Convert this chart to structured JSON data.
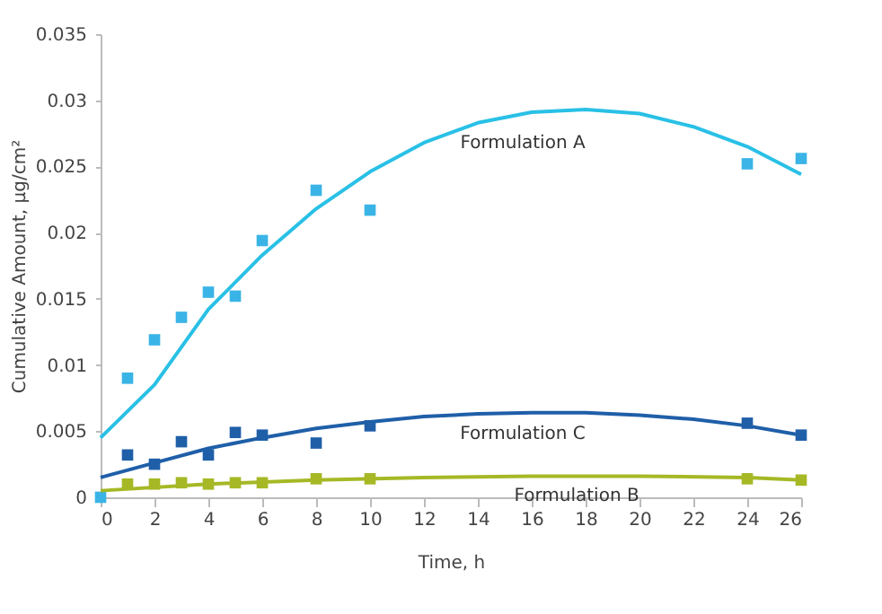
{
  "chart_data": {
    "type": "scatter",
    "xlabel": "Time, h",
    "ylabel": "Cumulative Amount, µg/cm²",
    "xlim": [
      0,
      26
    ],
    "xticks": [
      0,
      2,
      4,
      6,
      8,
      10,
      12,
      14,
      16,
      18,
      20,
      22,
      24,
      26
    ],
    "ylim": [
      0,
      0.035
    ],
    "yticks": [
      0,
      0.005,
      0.01,
      0.015,
      0.02,
      0.025,
      0.03,
      0.035
    ],
    "grid": false,
    "marker": "square",
    "series": [
      {
        "color": "#3ab4e6",
        "x": [
          0,
          1,
          2,
          3,
          4,
          5,
          6,
          8,
          10,
          24,
          26
        ],
        "values": [
          0,
          0.009,
          0.0119,
          0.0136,
          0.0155,
          0.0152,
          0.0194,
          0.0232,
          0.0217,
          0.0252,
          0.0256
        ]
      },
      {
        "color": "#1f5fa8",
        "x": [
          1,
          2,
          3,
          4,
          5,
          6,
          8,
          10,
          24,
          26
        ],
        "values": [
          0.0032,
          0.0025,
          0.0042,
          0.0032,
          0.0049,
          0.0047,
          0.0041,
          0.0054,
          0.0056,
          0.0047
        ]
      },
      {
        "color": "#a6b825",
        "x": [
          1,
          2,
          3,
          4,
          5,
          6,
          8,
          10,
          24,
          26
        ],
        "values": [
          0.001,
          0.001,
          0.0011,
          0.001,
          0.0011,
          0.0011,
          0.0014,
          0.0014,
          0.0014,
          0.0013
        ]
      },
      {
        "type": "line",
        "marker": "none",
        "name": "Formulation A",
        "color": "#29c0e6",
        "x": [
          0,
          2,
          4,
          6,
          8,
          10,
          12,
          14,
          16,
          18,
          20,
          22,
          24,
          26
        ],
        "values": [
          0.0045,
          0.0085,
          0.0142,
          0.0183,
          0.0218,
          0.0246,
          0.0268,
          0.0283,
          0.0291,
          0.0293,
          0.029,
          0.028,
          0.0265,
          0.0244
        ]
      },
      {
        "type": "line",
        "marker": "none",
        "name": "Formulation C",
        "color": "#1f5fa8",
        "x": [
          0,
          2,
          4,
          6,
          8,
          10,
          12,
          14,
          16,
          18,
          20,
          22,
          24,
          26
        ],
        "values": [
          0.0015,
          0.0026,
          0.0037,
          0.0045,
          0.0052,
          0.0057,
          0.0061,
          0.0063,
          0.0064,
          0.0064,
          0.0062,
          0.0059,
          0.0054,
          0.0047
        ]
      },
      {
        "type": "line",
        "marker": "none",
        "name": "Formulation B",
        "color": "#a6b825",
        "x": [
          0,
          4,
          8,
          12,
          16,
          20,
          24,
          26
        ],
        "values": [
          0.0005,
          0.001,
          0.0013,
          0.0015,
          0.0016,
          0.0016,
          0.0015,
          0.0013
        ]
      }
    ]
  }
}
